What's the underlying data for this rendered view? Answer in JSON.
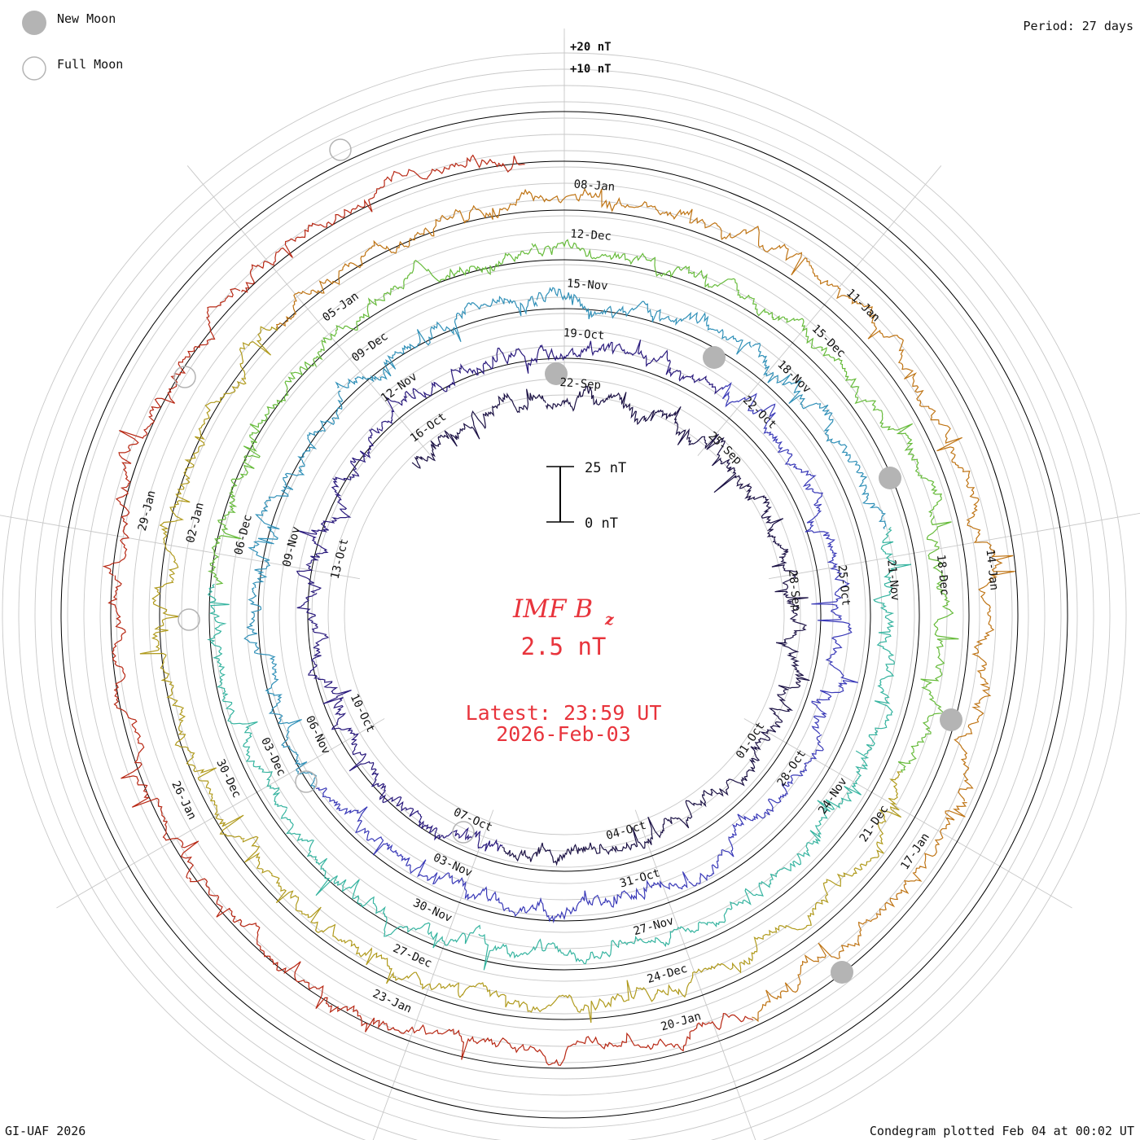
{
  "legend": {
    "new_moon": "New Moon",
    "full_moon": "Full Moon"
  },
  "period_label": "Period: 27 days",
  "scale_top": {
    "plus20": "+20 nT",
    "plus10": "+10 nT"
  },
  "scale_bar": {
    "top": "25 nT",
    "bottom": "0 nT"
  },
  "title": {
    "main": "IMF B",
    "sub": "z",
    "value": "2.5 nT"
  },
  "latest": {
    "line1": "Latest: 23:59 UT",
    "line2": "2026-Feb-03"
  },
  "footer": {
    "left": "GI-UAF 2026",
    "right": "Condegram plotted Feb 04 at 00:02 UT"
  },
  "colors": {
    "rings": [
      "#1c1245",
      "#2a1a7d",
      "#3a3ab8",
      "#3090b8",
      "#36b4a0",
      "#66bb3a",
      "#b09a1c",
      "#bf7414",
      "#b82814"
    ],
    "grid": "#c8c8c8",
    "baseline": "#000000",
    "accent": "#e8343c",
    "moon": "#b4b4b4"
  },
  "chart_data": {
    "type": "condegram",
    "quantity": "IMF Bz",
    "unit": "nT",
    "current_value": 2.5,
    "period_days": 27,
    "rotations": [
      {
        "index": 1,
        "date_labels": [
          "22-Sep",
          "25-Sep",
          "28-Sep",
          "01-Oct",
          "04-Oct",
          "07-Oct",
          "10-Oct",
          "13-Oct",
          "16-Oct"
        ]
      },
      {
        "index": 2,
        "date_labels": [
          "19-Oct",
          "22-Oct",
          "25-Oct",
          "28-Oct",
          "31-Oct",
          "03-Nov",
          "06-Nov",
          "09-Nov",
          "12-Nov"
        ]
      },
      {
        "index": 3,
        "date_labels": [
          "15-Nov",
          "18-Nov",
          "21-Nov",
          "24-Nov",
          "27-Nov",
          "30-Nov",
          "03-Dec",
          "06-Dec",
          "09-Dec"
        ]
      },
      {
        "index": 4,
        "date_labels": [
          "12-Dec",
          "15-Dec",
          "18-Dec",
          "21-Dec",
          "24-Dec",
          "27-Dec",
          "30-Dec",
          "02-Jan",
          "05-Jan"
        ]
      },
      {
        "index": 5,
        "date_labels": [
          "08-Jan",
          "11-Jan",
          "14-Jan",
          "17-Jan",
          "20-Jan",
          "23-Jan",
          "26-Jan",
          "29-Jan"
        ]
      }
    ],
    "new_moons": [
      "21-Sep",
      "20-Oct",
      "20-Nov",
      "20-Dec",
      "18-Jan"
    ],
    "full_moons": [
      "07-Oct",
      "05-Nov",
      "04-Dec",
      "03-Jan",
      "01-Feb"
    ],
    "scale_nT": [
      0,
      25
    ],
    "radial_scale_nT": [
      10,
      20
    ]
  }
}
